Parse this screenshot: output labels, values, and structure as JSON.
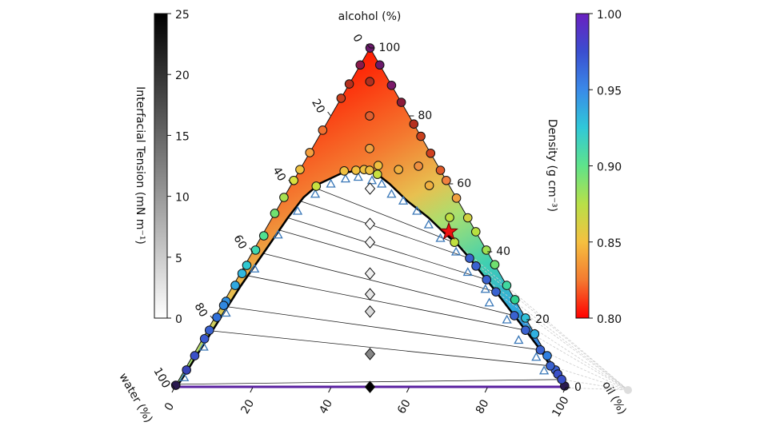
{
  "chart_data": {
    "type": "ternary",
    "axes": {
      "top": {
        "label": "alcohol (%)",
        "ticks": [
          "0",
          "20",
          "40",
          "60",
          "80",
          "100"
        ]
      },
      "left": {
        "label": "water (%)",
        "ticks": [
          "0",
          "20",
          "40",
          "60",
          "80",
          "100"
        ]
      },
      "bottom": {
        "label": "oil (%)",
        "ticks": [
          "0",
          "20",
          "40",
          "60",
          "80",
          "100"
        ]
      }
    },
    "colorbars": {
      "tension": {
        "label": "Interfacial Tension (mN m⁻¹)",
        "range": [
          0,
          25
        ],
        "ticks": [
          "0",
          "5",
          "10",
          "15",
          "20",
          "25"
        ],
        "colors": [
          "#ffffff",
          "#000000"
        ]
      },
      "density": {
        "label": "Density (g cm⁻³)",
        "range": [
          0.8,
          1.0
        ],
        "ticks": [
          "0.80",
          "0.85",
          "0.90",
          "0.95",
          "1.00"
        ],
        "colors": [
          "#ff0000",
          "#f47a30",
          "#f5c040",
          "#b8e048",
          "#5fe38a",
          "#30c8d8",
          "#3a8ae8",
          "#3a4ed0",
          "#6a20c0"
        ]
      }
    },
    "binodal_left": [
      [
        0,
        0.5
      ],
      [
        5,
        0.8
      ],
      [
        10,
        1
      ],
      [
        20,
        1.5
      ],
      [
        30,
        2
      ],
      [
        40,
        3
      ],
      [
        50,
        4
      ],
      [
        56,
        5
      ],
      [
        60,
        7
      ],
      [
        63,
        11
      ],
      [
        64,
        15
      ],
      [
        64,
        18
      ]
    ],
    "binodal_right": [
      [
        64,
        18
      ],
      [
        62.8,
        20.5
      ],
      [
        60,
        25
      ],
      [
        55,
        32
      ],
      [
        50,
        40
      ],
      [
        45,
        47
      ],
      [
        42.4,
        51
      ],
      [
        38.1,
        56.4
      ],
      [
        31.8,
        63.9
      ],
      [
        28.2,
        68.1
      ],
      [
        21.2,
        76.3
      ],
      [
        16.9,
        81.3
      ],
      [
        11.1,
        88
      ],
      [
        6.4,
        92.9
      ],
      [
        2.4,
        97.8
      ],
      [
        0,
        99.5
      ]
    ],
    "tie_lines": [
      {
        "left": [
          59,
          6
        ],
        "right": [
          42.4,
          51
        ]
      },
      {
        "left": [
          55,
          4.5
        ],
        "right": [
          38.1,
          56.4
        ]
      },
      {
        "left": [
          50,
          4
        ],
        "right": [
          31.8,
          63.9
        ]
      },
      {
        "left": [
          46.4,
          3.5
        ],
        "right": [
          28.2,
          68.1
        ]
      },
      {
        "left": [
          39.5,
          3
        ],
        "right": [
          21.2,
          76.3
        ]
      },
      {
        "left": [
          32.9,
          2.5
        ],
        "right": [
          16.9,
          81.3
        ]
      },
      {
        "left": [
          23.8,
          1.8
        ],
        "right": [
          11.1,
          88
        ]
      },
      {
        "left": [
          16.7,
          1.3
        ],
        "right": [
          6.4,
          92.9
        ]
      },
      {
        "left": [
          1,
          0.5
        ],
        "right": [
          2.4,
          97.8
        ]
      }
    ],
    "tie_line_midpoints": [
      {
        "alcohol": 58.6,
        "tension": 0.5
      },
      {
        "alcohol": 48.2,
        "tension": 0.5
      },
      {
        "alcohol": 42.8,
        "tension": 0.8
      },
      {
        "alcohol": 33.6,
        "tension": 1.5
      },
      {
        "alcohol": 27.5,
        "tension": 2.5
      },
      {
        "alcohol": 22.4,
        "tension": 3.5
      },
      {
        "alcohol": 9.9,
        "tension": 12
      },
      {
        "alcohol": 0.2,
        "tension": 25
      }
    ],
    "measured_points": [
      [
        100,
        0,
        "#6b1a6b"
      ],
      [
        95,
        0,
        "#8b1a4a"
      ],
      [
        89.4,
        0,
        "#b5301e"
      ],
      [
        85.2,
        0,
        "#c8401e"
      ],
      [
        75.8,
        0,
        "#f07030"
      ],
      [
        69.2,
        0,
        "#f5a040"
      ],
      [
        64.2,
        0,
        "#eec040"
      ],
      [
        61,
        0,
        "#d8e040"
      ],
      [
        56,
        0,
        "#a8e050"
      ],
      [
        51.3,
        0,
        "#70e070"
      ],
      [
        44.7,
        0.5,
        "#50e090"
      ],
      [
        40.5,
        0.5,
        "#40d8b0"
      ],
      [
        36,
        0.5,
        "#30c8d0"
      ],
      [
        33.6,
        0.5,
        "#30b8e0"
      ],
      [
        30.1,
        0.5,
        "#30a8e0"
      ],
      [
        25.4,
        0.5,
        "#3090e0"
      ],
      [
        24.2,
        0.5,
        "#3088e0"
      ],
      [
        20.7,
        0.5,
        "#3070d8"
      ],
      [
        16.9,
        0.5,
        "#3a62d0"
      ],
      [
        14.4,
        0.5,
        "#3a5ad0"
      ],
      [
        9.4,
        0.5,
        "#3a50c8"
      ],
      [
        5.2,
        0.5,
        "#3a44b8"
      ],
      [
        0.7,
        0,
        "#2a1a50"
      ],
      [
        95,
        5,
        "#6b1a6b"
      ],
      [
        89,
        11,
        "#7a1a6a"
      ],
      [
        84,
        16,
        "#8b1a3a"
      ],
      [
        77.6,
        22.4,
        "#b5301e"
      ],
      [
        74,
        26,
        "#c8401e"
      ],
      [
        69,
        31,
        "#d04020"
      ],
      [
        64,
        36,
        "#e05a28"
      ],
      [
        61,
        39,
        "#f08040"
      ],
      [
        55.8,
        44.2,
        "#f0a040"
      ],
      [
        50,
        50,
        "#d0d040"
      ],
      [
        45.9,
        54.1,
        "#b8e040"
      ],
      [
        40.5,
        59.5,
        "#a0e050"
      ],
      [
        36.2,
        63.8,
        "#70e070"
      ],
      [
        30.1,
        69.9,
        "#40d8a0"
      ],
      [
        25.9,
        74.1,
        "#30d090"
      ],
      [
        20.5,
        79.5,
        "#30c0d8"
      ],
      [
        15.8,
        84.2,
        "#30b0e0"
      ],
      [
        9.4,
        90.6,
        "#3080e0"
      ],
      [
        5.2,
        94.8,
        "#3a60d0"
      ],
      [
        0.5,
        99.5,
        "#2a1a50"
      ],
      [
        90.1,
        4.9,
        "#b03020"
      ],
      [
        80,
        9.9,
        "#e06030"
      ],
      [
        70.4,
        14.7,
        "#f0a040"
      ],
      [
        65.2,
        29.8,
        "#f09040"
      ],
      [
        59.5,
        35.4,
        "#f0b040"
      ],
      [
        64.2,
        25.2,
        "#f0b040"
      ],
      [
        65.4,
        19.4,
        "#f0c040"
      ],
      [
        50.1,
        45.3,
        "#c0e040"
      ],
      [
        42.8,
        50.2,
        "#c0e040"
      ],
      [
        63.8,
        11.5,
        "#f0c040"
      ],
      [
        64,
        14.4,
        "#f0c040"
      ],
      [
        64.2,
        16.4,
        "#f0c040"
      ],
      [
        64,
        17.9,
        "#eec040"
      ],
      [
        62.8,
        20.5,
        "#c8e040"
      ],
      [
        59.3,
        6.6,
        "#c8e040"
      ],
      [
        38.1,
        56.4,
        "#3a62d0"
      ],
      [
        35.8,
        59.2,
        "#3a62d0"
      ],
      [
        31.8,
        63.9,
        "#3a62d0"
      ],
      [
        28.2,
        68.1,
        "#3a62d0"
      ],
      [
        21.2,
        76.3,
        "#3a62d0"
      ],
      [
        16.9,
        81.3,
        "#3a62d0"
      ],
      [
        11.1,
        88,
        "#3a62d0"
      ],
      [
        6.4,
        92.9,
        "#3a62d0"
      ],
      [
        4,
        96,
        "#3a50c8"
      ],
      [
        2.4,
        97.8,
        "#3a50c8"
      ]
    ],
    "model_points": [
      [
        3,
        1
      ],
      [
        12,
        1.5
      ],
      [
        22,
        2.2
      ],
      [
        35,
        3
      ],
      [
        45,
        4
      ],
      [
        52,
        5.5
      ],
      [
        57,
        7.5
      ],
      [
        60,
        10
      ],
      [
        61.5,
        13
      ],
      [
        62,
        16
      ],
      [
        61,
        20
      ],
      [
        60,
        23
      ],
      [
        57,
        27
      ],
      [
        55,
        31
      ],
      [
        52,
        36
      ],
      [
        48,
        41
      ],
      [
        44,
        46
      ],
      [
        40,
        52
      ],
      [
        34,
        58
      ],
      [
        29,
        65
      ],
      [
        25,
        68
      ],
      [
        20,
        75
      ],
      [
        14,
        81
      ],
      [
        9,
        88
      ],
      [
        5,
        92
      ]
    ],
    "critical_point": [
      45.9,
      47.2
    ],
    "critical_point_color": "#ee1111",
    "invariant_point": [
      -0.7,
      116.3
    ]
  }
}
